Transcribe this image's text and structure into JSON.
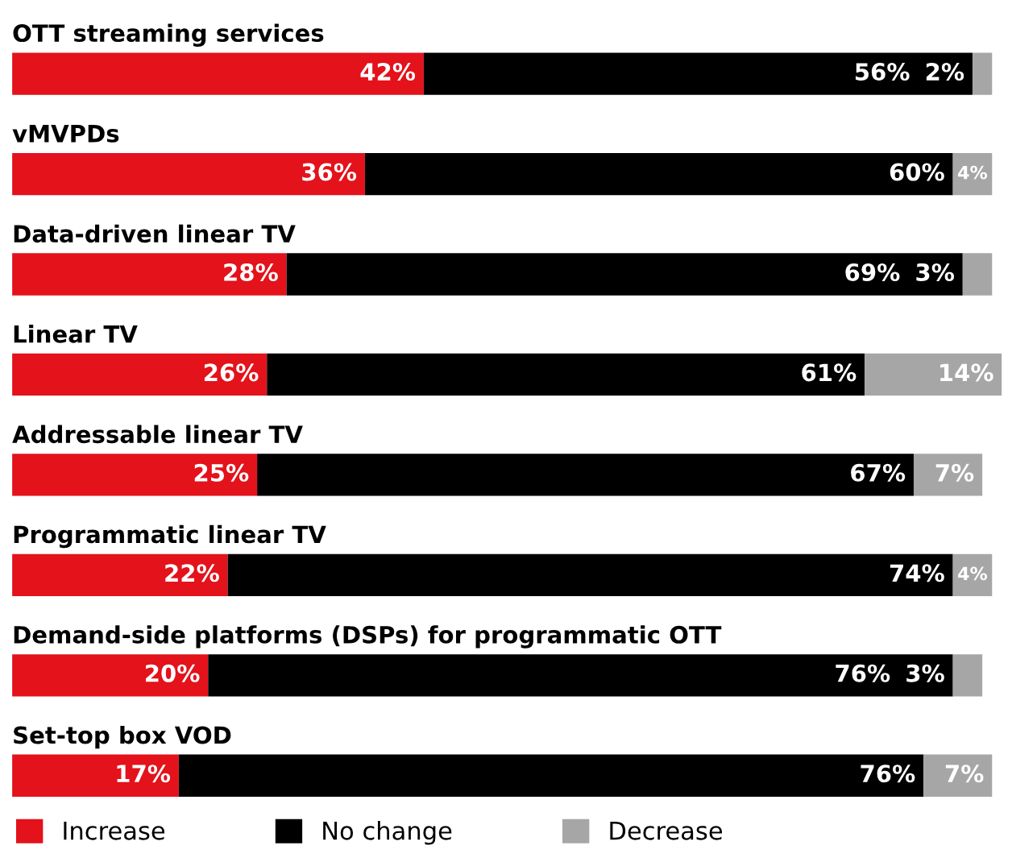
{
  "chart_data": {
    "type": "bar",
    "orientation": "horizontal",
    "stacked": true,
    "legend": "bottom left",
    "categories": [
      "OTT streaming services",
      "vMVPDs",
      "Data-driven linear TV",
      "Linear TV",
      "Addressable linear TV",
      "Programmatic linear TV",
      "Demand-side platforms (DSPs) for programmatic OTT",
      "Set-top box VOD"
    ],
    "series": [
      {
        "name": "Increase",
        "color": "#e3121b",
        "values": [
          42,
          36,
          28,
          26,
          25,
          22,
          20,
          17
        ],
        "value_labels": [
          "42%",
          "36%",
          "28%",
          "26%",
          "25%",
          "22%",
          "20%",
          "17%"
        ]
      },
      {
        "name": "No change",
        "color": "#000000",
        "values": [
          56,
          60,
          69,
          61,
          67,
          74,
          76,
          76
        ],
        "value_labels": [
          "56%",
          "60%",
          "69%",
          "61%",
          "67%",
          "74%",
          "76%",
          "76%"
        ]
      },
      {
        "name": "Decrease",
        "color": "#a6a6a6",
        "values": [
          2,
          4,
          3,
          14,
          7,
          4,
          3,
          7
        ],
        "value_labels": [
          "2%",
          "4%",
          "3%",
          "14%",
          "7%",
          "4%",
          "3%",
          "7%"
        ]
      }
    ]
  }
}
